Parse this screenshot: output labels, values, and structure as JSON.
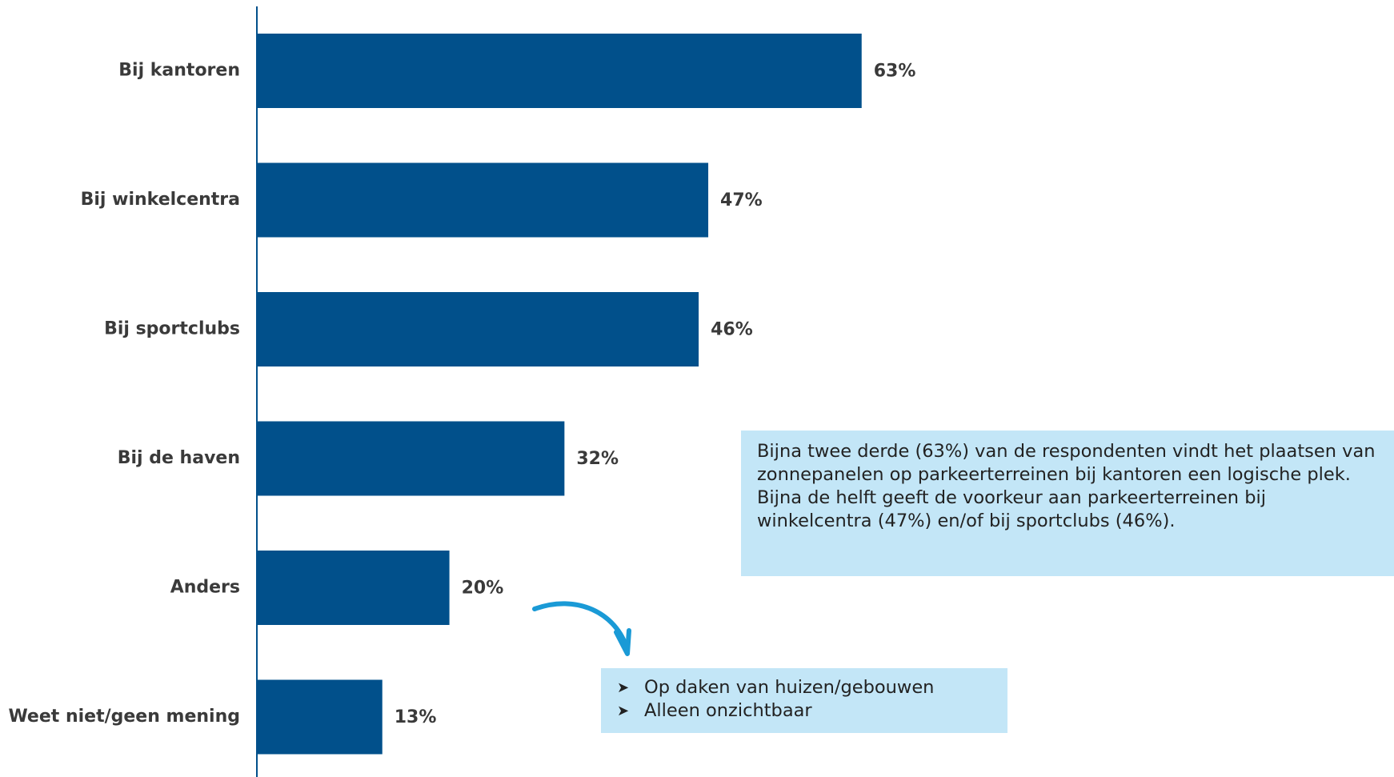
{
  "chart_data": {
    "type": "bar",
    "orientation": "horizontal",
    "categories": [
      "Bij kantoren",
      "Bij winkelcentra",
      "Bij sportclubs",
      "Bij de haven",
      "Anders",
      "Weet niet/geen mening"
    ],
    "values": [
      63,
      47,
      46,
      32,
      20,
      13
    ],
    "value_labels": [
      "63%",
      "47%",
      "46%",
      "32%",
      "20%",
      "13%"
    ],
    "unit": "%",
    "xlim": [
      0,
      100
    ],
    "grid": false,
    "legend": "none",
    "title": "",
    "xlabel": "",
    "ylabel": ""
  },
  "colors": {
    "bar": "#01508b",
    "axis": "#01508b",
    "callout_bg": "#c3e6f7",
    "arrow": "#1a9ad6",
    "label_text": "#3a3a3a"
  },
  "summary": {
    "text": "Bijna twee derde (63%) van de respondenten vindt het plaatsen van zonnepanelen op parkeerterreinen bij kantoren een logische plek. Bijna de helft geeft de voorkeur aan parkeerterreinen bij winkelcentra (47%) en/of bij sportclubs (46%)."
  },
  "others": {
    "bullet_icon": "arrowhead-bullet-icon",
    "items": [
      {
        "label": "Op daken van huizen/gebouwen"
      },
      {
        "label": "Alleen onzichtbaar"
      }
    ]
  },
  "annotation": {
    "arrow_icon": "curved-arrow-icon"
  }
}
